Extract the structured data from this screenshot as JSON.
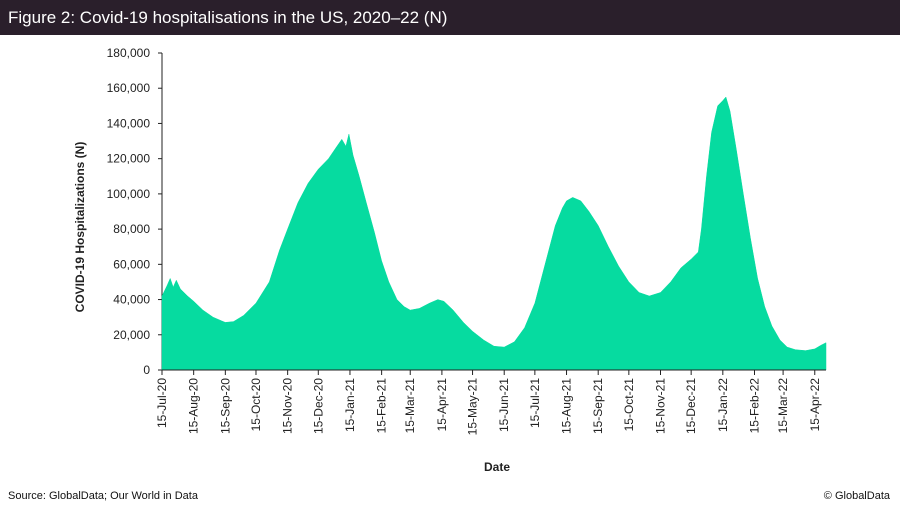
{
  "header": {
    "title": "Figure 2: Covid-19 hospitalisations in the US, 2020–22 (N)"
  },
  "footer": {
    "source": "Source: GlobalData; Our World in Data",
    "copyright": "© GlobalData"
  },
  "colors": {
    "area": "#06dba0",
    "title_bg": "#2a1f2b",
    "axis": "#222222"
  },
  "chart_data": {
    "type": "area",
    "title": "Figure 2: Covid-19 hospitalisations in the US, 2020–22 (N)",
    "xlabel": "Date",
    "ylabel": "COVID-19 Hospitalizations (N)",
    "ylim": [
      0,
      180000
    ],
    "yticks": [
      0,
      20000,
      40000,
      60000,
      80000,
      100000,
      120000,
      140000,
      160000,
      180000
    ],
    "ytick_labels": [
      "0",
      "20,000",
      "40,000",
      "60,000",
      "80,000",
      "100,000",
      "120,000",
      "140,000",
      "160,000",
      "180,000"
    ],
    "xlim_days": [
      0,
      650
    ],
    "xticks": [
      {
        "label": "15-Jul-20",
        "day": 0
      },
      {
        "label": "15-Aug-20",
        "day": 31
      },
      {
        "label": "15-Sep-20",
        "day": 62
      },
      {
        "label": "15-Oct-20",
        "day": 92
      },
      {
        "label": "15-Nov-20",
        "day": 123
      },
      {
        "label": "15-Dec-20",
        "day": 153
      },
      {
        "label": "15-Jan-21",
        "day": 184
      },
      {
        "label": "15-Feb-21",
        "day": 215
      },
      {
        "label": "15-Mar-21",
        "day": 243
      },
      {
        "label": "15-Apr-21",
        "day": 274
      },
      {
        "label": "15-May-21",
        "day": 304
      },
      {
        "label": "15-Jun-21",
        "day": 335
      },
      {
        "label": "15-Jul-21",
        "day": 365
      },
      {
        "label": "15-Aug-21",
        "day": 396
      },
      {
        "label": "15-Sep-21",
        "day": 427
      },
      {
        "label": "15-Oct-21",
        "day": 457
      },
      {
        "label": "15-Nov-21",
        "day": 488
      },
      {
        "label": "15-Dec-21",
        "day": 518
      },
      {
        "label": "15-Jan-22",
        "day": 549
      },
      {
        "label": "15-Feb-22",
        "day": 580
      },
      {
        "label": "15-Mar-22",
        "day": 608
      },
      {
        "label": "15-Apr-22",
        "day": 639
      }
    ],
    "series": [
      {
        "name": "COVID-19 Hospitalizations",
        "points": [
          [
            0,
            42000
          ],
          [
            5,
            48000
          ],
          [
            8,
            52000
          ],
          [
            11,
            47000
          ],
          [
            14,
            51000
          ],
          [
            18,
            46000
          ],
          [
            25,
            42000
          ],
          [
            31,
            39000
          ],
          [
            40,
            34000
          ],
          [
            50,
            30000
          ],
          [
            58,
            28000
          ],
          [
            62,
            27000
          ],
          [
            70,
            27500
          ],
          [
            80,
            31000
          ],
          [
            92,
            38000
          ],
          [
            105,
            50000
          ],
          [
            115,
            68000
          ],
          [
            123,
            80000
          ],
          [
            133,
            95000
          ],
          [
            143,
            106000
          ],
          [
            153,
            114000
          ],
          [
            163,
            120000
          ],
          [
            170,
            126000
          ],
          [
            176,
            131000
          ],
          [
            180,
            127000
          ],
          [
            183,
            134000
          ],
          [
            187,
            122000
          ],
          [
            193,
            110000
          ],
          [
            200,
            95000
          ],
          [
            208,
            78000
          ],
          [
            215,
            62000
          ],
          [
            222,
            50000
          ],
          [
            230,
            40000
          ],
          [
            237,
            36000
          ],
          [
            243,
            34000
          ],
          [
            252,
            35000
          ],
          [
            262,
            38000
          ],
          [
            270,
            40000
          ],
          [
            276,
            39000
          ],
          [
            285,
            34000
          ],
          [
            295,
            27000
          ],
          [
            304,
            22000
          ],
          [
            315,
            17000
          ],
          [
            325,
            13500
          ],
          [
            335,
            13000
          ],
          [
            345,
            16000
          ],
          [
            355,
            24000
          ],
          [
            365,
            38000
          ],
          [
            375,
            60000
          ],
          [
            385,
            82000
          ],
          [
            392,
            92000
          ],
          [
            396,
            96000
          ],
          [
            402,
            98000
          ],
          [
            410,
            96000
          ],
          [
            418,
            90000
          ],
          [
            427,
            82000
          ],
          [
            437,
            70000
          ],
          [
            447,
            59000
          ],
          [
            457,
            50000
          ],
          [
            467,
            44000
          ],
          [
            477,
            42000
          ],
          [
            488,
            44000
          ],
          [
            498,
            50000
          ],
          [
            508,
            58000
          ],
          [
            518,
            63000
          ],
          [
            525,
            67000
          ],
          [
            528,
            80000
          ],
          [
            533,
            110000
          ],
          [
            538,
            135000
          ],
          [
            544,
            150000
          ],
          [
            549,
            153000
          ],
          [
            552,
            155000
          ],
          [
            556,
            147000
          ],
          [
            562,
            126000
          ],
          [
            569,
            100000
          ],
          [
            576,
            75000
          ],
          [
            583,
            52000
          ],
          [
            590,
            36000
          ],
          [
            597,
            25000
          ],
          [
            605,
            17000
          ],
          [
            612,
            13000
          ],
          [
            620,
            11500
          ],
          [
            630,
            11000
          ],
          [
            639,
            12000
          ],
          [
            645,
            14000
          ],
          [
            650,
            15500
          ]
        ]
      }
    ]
  }
}
